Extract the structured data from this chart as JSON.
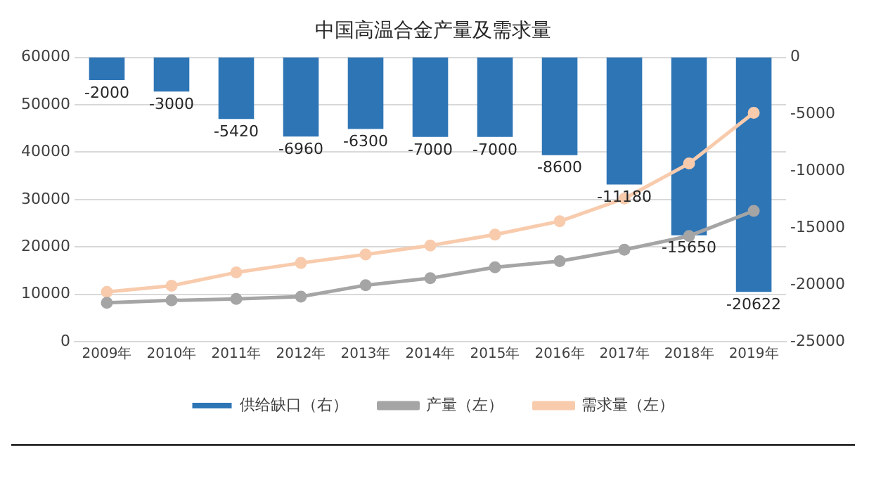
{
  "chart_data": {
    "type": "bar",
    "title": "中国高温合金产量及需求量",
    "categories": [
      "2009年",
      "2010年",
      "2011年",
      "2012年",
      "2013年",
      "2014年",
      "2015年",
      "2016年",
      "2017年",
      "2018年",
      "2019年"
    ],
    "series": [
      {
        "name": "供给缺口（右）",
        "axis": "y2",
        "color": "#2e75b6",
        "values": [
          -2000,
          -3000,
          -5420,
          -6960,
          -6300,
          -7000,
          -7000,
          -8600,
          -11180,
          -15650,
          -20622
        ],
        "value_labels": [
          "-2000",
          "-3000",
          "-5420",
          "-6960",
          "-6300",
          "-7000",
          "-7000",
          "-8600",
          "-11180",
          "-15650",
          "-20622"
        ]
      },
      {
        "name": "产量（左）",
        "type": "line",
        "color": "#a5a5a5",
        "values": [
          8200,
          8700,
          9000,
          9500,
          11900,
          13400,
          15700,
          17000,
          19400,
          22300,
          27600
        ]
      },
      {
        "name": "需求量（左）",
        "type": "line",
        "color": "#f8cbad",
        "values": [
          10500,
          11800,
          14600,
          16600,
          18400,
          20300,
          22600,
          25400,
          30200,
          37600,
          48300
        ]
      }
    ],
    "ylim": [
      0,
      60000
    ],
    "yticks": [
      0,
      10000,
      20000,
      30000,
      40000,
      50000,
      60000
    ],
    "y2lim": [
      -25000,
      0
    ],
    "y2ticks": [
      -25000,
      -20000,
      -15000,
      -10000,
      -5000,
      0
    ],
    "grid": "y",
    "legend": "bottom",
    "marker": "circle"
  }
}
